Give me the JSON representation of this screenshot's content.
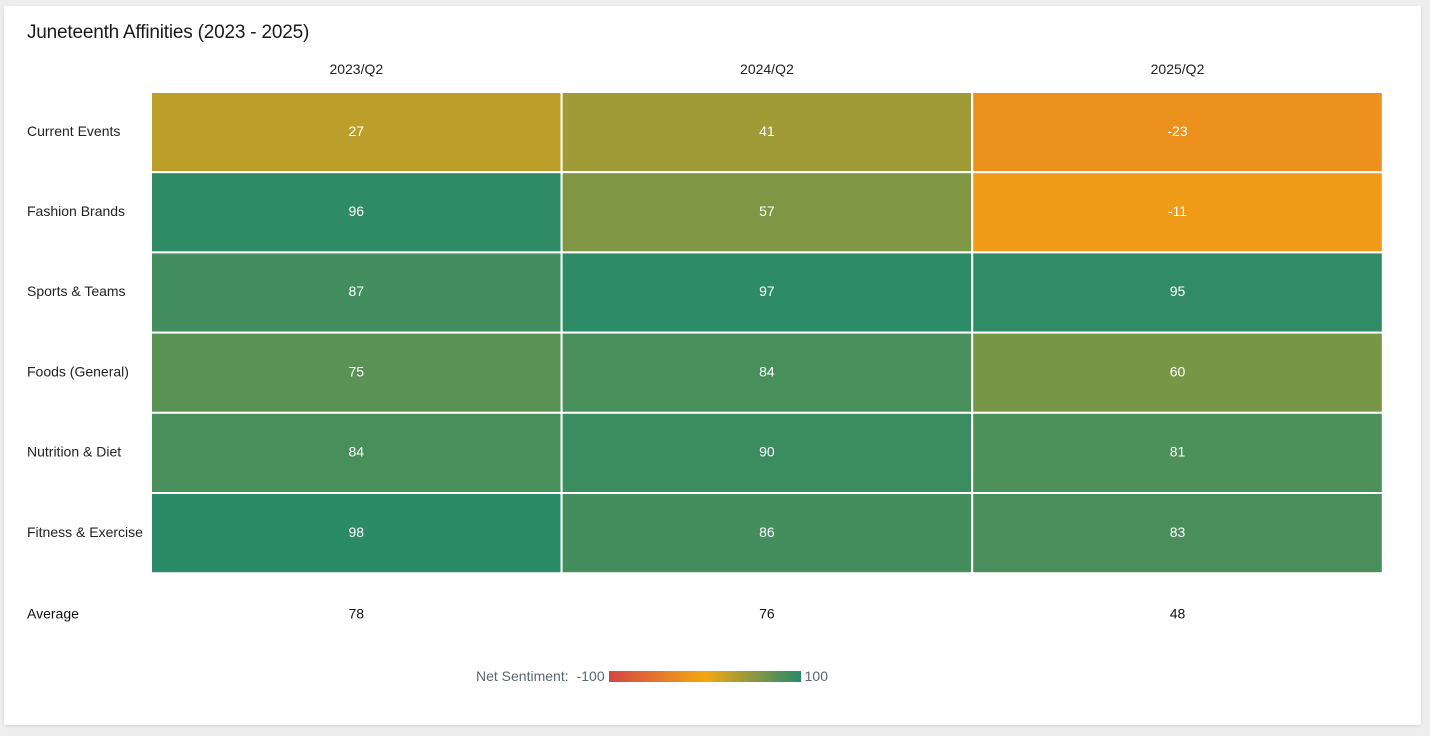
{
  "card_title": "Juneteenth Affinities (2023 - 2025)",
  "chart_data": {
    "type": "heatmap",
    "title": "Juneteenth Affinities (2023 - 2025)",
    "columns": [
      "2023/Q2",
      "2024/Q2",
      "2025/Q2"
    ],
    "rows": [
      "Current Events",
      "Fashion Brands",
      "Sports & Teams",
      "Foods (General)",
      "Nutrition & Diet",
      "Fitness & Exercise"
    ],
    "values": [
      [
        27,
        41,
        -23
      ],
      [
        96,
        57,
        -11
      ],
      [
        87,
        97,
        95
      ],
      [
        75,
        84,
        60
      ],
      [
        84,
        90,
        81
      ],
      [
        98,
        86,
        83
      ]
    ],
    "average_label": "Average",
    "averages": [
      78,
      76,
      48
    ],
    "scale": {
      "label": "Net Sentiment:",
      "min": -100,
      "max": 100,
      "min_label": "-100",
      "max_label": "100",
      "colors": [
        "#d64545",
        "#f3a712",
        "#278a6a"
      ]
    }
  }
}
